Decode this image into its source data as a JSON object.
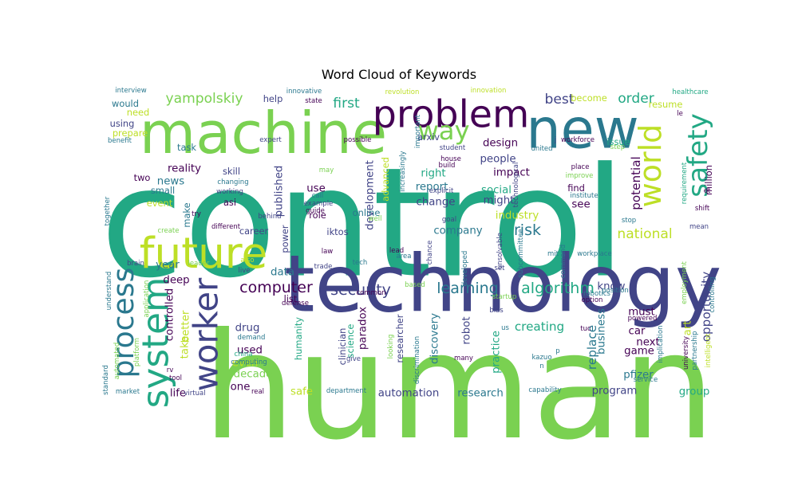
{
  "chart_data": {
    "type": "wordcloud",
    "title": "Word Cloud of Keywords",
    "words": [
      {
        "text": "control",
        "size": 1.0,
        "color": "#22a884"
      },
      {
        "text": "human",
        "size": 0.97,
        "color": "#7ad151"
      },
      {
        "text": "technology",
        "size": 0.52,
        "color": "#414487"
      },
      {
        "text": "machine",
        "size": 0.38,
        "color": "#7ad151"
      },
      {
        "text": "new",
        "size": 0.36,
        "color": "#2a788e"
      },
      {
        "text": "future",
        "size": 0.28,
        "color": "#bddf26"
      },
      {
        "text": "problem",
        "size": 0.25,
        "color": "#440154"
      },
      {
        "text": "system",
        "size": 0.24,
        "color": "#22a884"
      },
      {
        "text": "worker",
        "size": 0.22,
        "color": "#414487"
      },
      {
        "text": "world",
        "size": 0.2,
        "color": "#bddf26"
      },
      {
        "text": "process",
        "size": 0.19,
        "color": "#2a788e"
      },
      {
        "text": "safety",
        "size": 0.18,
        "color": "#22a884"
      },
      {
        "text": "way",
        "size": 0.17,
        "color": "#7ad151"
      },
      {
        "text": "security",
        "size": 0.1,
        "color": "#414487"
      },
      {
        "text": "learning",
        "size": 0.1,
        "color": "#2a788e"
      },
      {
        "text": "algorithm",
        "size": 0.1,
        "color": "#22a884"
      },
      {
        "text": "computer",
        "size": 0.1,
        "color": "#440154"
      },
      {
        "text": "risk",
        "size": 0.1,
        "color": "#2a788e"
      },
      {
        "text": "national",
        "size": 0.09,
        "color": "#bddf26"
      },
      {
        "text": "yampolskiy",
        "size": 0.09,
        "color": "#7ad151"
      },
      {
        "text": "first",
        "size": 0.09,
        "color": "#22a884"
      },
      {
        "text": "best",
        "size": 0.09,
        "color": "#414487"
      },
      {
        "text": "order",
        "size": 0.09,
        "color": "#22a884"
      },
      {
        "text": "potential",
        "size": 0.08,
        "color": "#440154"
      },
      {
        "text": "opportunity",
        "size": 0.08,
        "color": "#414487"
      },
      {
        "text": "replace",
        "size": 0.08,
        "color": "#2a788e"
      },
      {
        "text": "creating",
        "size": 0.08,
        "color": "#22a884"
      },
      {
        "text": "research",
        "size": 0.07,
        "color": "#2a788e"
      },
      {
        "text": "automation",
        "size": 0.07,
        "color": "#414487"
      },
      {
        "text": "published",
        "size": 0.07,
        "color": "#414487"
      },
      {
        "text": "development",
        "size": 0.07,
        "color": "#414487"
      },
      {
        "text": "reality",
        "size": 0.07,
        "color": "#440154"
      },
      {
        "text": "news",
        "size": 0.07,
        "color": "#2a788e"
      },
      {
        "text": "right",
        "size": 0.07,
        "color": "#22a884"
      },
      {
        "text": "social",
        "size": 0.07,
        "color": "#22a884"
      },
      {
        "text": "impact",
        "size": 0.07,
        "color": "#440154"
      },
      {
        "text": "might",
        "size": 0.07,
        "color": "#414487"
      },
      {
        "text": "industry",
        "size": 0.07,
        "color": "#bddf26"
      },
      {
        "text": "use",
        "size": 0.07,
        "color": "#440154"
      },
      {
        "text": "see",
        "size": 0.07,
        "color": "#440154"
      },
      {
        "text": "design",
        "size": 0.07,
        "color": "#440154"
      },
      {
        "text": "people",
        "size": 0.07,
        "color": "#414487"
      },
      {
        "text": "change",
        "size": 0.07,
        "color": "#414487"
      },
      {
        "text": "report",
        "size": 0.07,
        "color": "#2a788e"
      },
      {
        "text": "company",
        "size": 0.07,
        "color": "#2a788e"
      },
      {
        "text": "data",
        "size": 0.07,
        "color": "#2a788e"
      },
      {
        "text": "year",
        "size": 0.07,
        "color": "#2a788e"
      },
      {
        "text": "drug",
        "size": 0.07,
        "color": "#414487"
      },
      {
        "text": "robot",
        "size": 0.07,
        "color": "#414487"
      },
      {
        "text": "next",
        "size": 0.07,
        "color": "#440154"
      },
      {
        "text": "car",
        "size": 0.07,
        "color": "#440154"
      },
      {
        "text": "must",
        "size": 0.07,
        "color": "#440154"
      },
      {
        "text": "game",
        "size": 0.07,
        "color": "#440154"
      },
      {
        "text": "pfizer",
        "size": 0.07,
        "color": "#2a788e"
      },
      {
        "text": "program",
        "size": 0.07,
        "color": "#414487"
      },
      {
        "text": "group",
        "size": 0.07,
        "color": "#22a884"
      },
      {
        "text": "life",
        "size": 0.07,
        "color": "#440154"
      },
      {
        "text": "safe",
        "size": 0.07,
        "color": "#bddf26"
      },
      {
        "text": "one",
        "size": 0.07,
        "color": "#440154"
      },
      {
        "text": "decade",
        "size": 0.07,
        "color": "#7ad151"
      },
      {
        "text": "even",
        "size": 0.07,
        "color": "#bddf26"
      },
      {
        "text": "used",
        "size": 0.07,
        "color": "#440154"
      },
      {
        "text": "paradox",
        "size": 0.07,
        "color": "#440154"
      },
      {
        "text": "practice",
        "size": 0.07,
        "color": "#22a884"
      },
      {
        "text": "discovery",
        "size": 0.07,
        "color": "#2a788e"
      },
      {
        "text": "business",
        "size": 0.07,
        "color": "#2a788e"
      },
      {
        "text": "art",
        "size": 0.07,
        "color": "#bddf26"
      },
      {
        "text": "know",
        "size": 0.07,
        "color": "#414487"
      },
      {
        "text": "deep",
        "size": 0.07,
        "color": "#440154"
      },
      {
        "text": "better",
        "size": 0.07,
        "color": "#bddf26"
      },
      {
        "text": "take",
        "size": 0.07,
        "color": "#bddf26"
      },
      {
        "text": "controlled",
        "size": 0.07,
        "color": "#440154"
      },
      {
        "text": "list",
        "size": 0.06,
        "color": "#440154"
      },
      {
        "text": "role",
        "size": 0.06,
        "color": "#440154"
      },
      {
        "text": "online",
        "size": 0.06,
        "color": "#2a788e"
      },
      {
        "text": "iktos",
        "size": 0.06,
        "color": "#414487"
      },
      {
        "text": "career",
        "size": 0.06,
        "color": "#414487"
      },
      {
        "text": "power",
        "size": 0.06,
        "color": "#414487"
      },
      {
        "text": "humanity",
        "size": 0.06,
        "color": "#22a884"
      },
      {
        "text": "science",
        "size": 0.06,
        "color": "#22a884"
      },
      {
        "text": "clinician",
        "size": 0.06,
        "color": "#414487"
      },
      {
        "text": "researcher",
        "size": 0.06,
        "color": "#414487"
      },
      {
        "text": "advanced",
        "size": 0.06,
        "color": "#bddf26"
      },
      {
        "text": "arxiv",
        "size": 0.06,
        "color": "#414487"
      },
      {
        "text": "issue",
        "size": 0.06,
        "color": "#22a884"
      },
      {
        "text": "become",
        "size": 0.06,
        "color": "#bddf26"
      },
      {
        "text": "resume",
        "size": 0.06,
        "color": "#bddf26"
      },
      {
        "text": "find",
        "size": 0.06,
        "color": "#440154"
      },
      {
        "text": "million",
        "size": 0.06,
        "color": "#440154"
      },
      {
        "text": "would",
        "size": 0.06,
        "color": "#2a788e"
      },
      {
        "text": "need",
        "size": 0.06,
        "color": "#bddf26"
      },
      {
        "text": "using",
        "size": 0.06,
        "color": "#414487"
      },
      {
        "text": "prepare",
        "size": 0.06,
        "color": "#bddf26"
      },
      {
        "text": "task",
        "size": 0.06,
        "color": "#2a788e"
      },
      {
        "text": "help",
        "size": 0.06,
        "color": "#414487"
      },
      {
        "text": "skill",
        "size": 0.06,
        "color": "#414487"
      },
      {
        "text": "asi",
        "size": 0.06,
        "color": "#440154"
      },
      {
        "text": "two",
        "size": 0.06,
        "color": "#440154"
      },
      {
        "text": "small",
        "size": 0.06,
        "color": "#2a788e"
      },
      {
        "text": "event",
        "size": 0.06,
        "color": "#bddf26"
      },
      {
        "text": "make",
        "size": 0.06,
        "color": "#2a788e"
      },
      {
        "text": "interview",
        "size": 0.04,
        "color": "#2a788e"
      },
      {
        "text": "benefit",
        "size": 0.03,
        "color": "#2a788e"
      },
      {
        "text": "together",
        "size": 0.03,
        "color": "#2a788e"
      },
      {
        "text": "create",
        "size": 0.03,
        "color": "#7ad151"
      },
      {
        "text": "brain",
        "size": 0.03,
        "color": "#414487"
      },
      {
        "text": "understand",
        "size": 0.03,
        "color": "#2a788e"
      },
      {
        "text": "application",
        "size": 0.03,
        "color": "#7ad151"
      },
      {
        "text": "automated",
        "size": 0.03,
        "color": "#7ad151"
      },
      {
        "text": "standard",
        "size": 0.03,
        "color": "#2a788e"
      },
      {
        "text": "platform",
        "size": 0.03,
        "color": "#7ad151"
      },
      {
        "text": "market",
        "size": 0.03,
        "color": "#2a788e"
      },
      {
        "text": "virtual",
        "size": 0.03,
        "color": "#414487"
      },
      {
        "text": "real",
        "size": 0.03,
        "color": "#440154"
      },
      {
        "text": "tool",
        "size": 0.03,
        "color": "#440154"
      },
      {
        "text": "rv",
        "size": 0.03,
        "color": "#440154"
      },
      {
        "text": "china",
        "size": 0.03,
        "color": "#22a884"
      },
      {
        "text": "computing",
        "size": 0.03,
        "color": "#2a788e"
      },
      {
        "text": "demand",
        "size": 0.03,
        "color": "#2a788e"
      },
      {
        "text": "live",
        "size": 0.03,
        "color": "#414487"
      },
      {
        "text": "also",
        "size": 0.03,
        "color": "#bddf26"
      },
      {
        "text": "leader",
        "size": 0.03,
        "color": "#7ad151"
      },
      {
        "text": "try",
        "size": 0.03,
        "color": "#440154"
      },
      {
        "text": "different",
        "size": 0.03,
        "color": "#440154"
      },
      {
        "text": "behind",
        "size": 0.03,
        "color": "#414487"
      },
      {
        "text": "working",
        "size": 0.03,
        "color": "#414487"
      },
      {
        "text": "changing",
        "size": 0.03,
        "color": "#2a788e"
      },
      {
        "text": "may",
        "size": 0.03,
        "color": "#7ad151"
      },
      {
        "text": "call",
        "size": 0.03,
        "color": "#2a788e"
      },
      {
        "text": "example",
        "size": 0.03,
        "color": "#414487"
      },
      {
        "text": "well",
        "size": 0.03,
        "color": "#7ad151"
      },
      {
        "text": "goal",
        "size": 0.03,
        "color": "#414487"
      },
      {
        "text": "house",
        "size": 0.03,
        "color": "#440154"
      },
      {
        "text": "explicit",
        "size": 0.03,
        "color": "#414487"
      },
      {
        "text": "increasingly",
        "size": 0.03,
        "color": "#2a788e"
      },
      {
        "text": "possible",
        "size": 0.03,
        "color": "#440154"
      },
      {
        "text": "expert",
        "size": 0.03,
        "color": "#414487"
      },
      {
        "text": "innovative",
        "size": 0.03,
        "color": "#2a788e"
      },
      {
        "text": "state",
        "size": 0.03,
        "color": "#440154"
      },
      {
        "text": "revolution",
        "size": 0.03,
        "color": "#bddf26"
      },
      {
        "text": "important",
        "size": 0.03,
        "color": "#2a788e"
      },
      {
        "text": "student",
        "size": 0.03,
        "color": "#414487"
      },
      {
        "text": "innovation",
        "size": 0.03,
        "color": "#bddf26"
      },
      {
        "text": "build",
        "size": 0.03,
        "color": "#440154"
      },
      {
        "text": "guide",
        "size": 0.03,
        "color": "#440154"
      },
      {
        "text": "law",
        "size": 0.03,
        "color": "#440154"
      },
      {
        "text": "united",
        "size": 0.03,
        "color": "#2a788e"
      },
      {
        "text": "j",
        "size": 0.03,
        "color": "#414487"
      },
      {
        "text": "workforce",
        "size": 0.03,
        "color": "#440154"
      },
      {
        "text": "healthcare",
        "size": 0.03,
        "color": "#22a884"
      },
      {
        "text": "le",
        "size": 0.03,
        "color": "#440154"
      },
      {
        "text": "step",
        "size": 0.03,
        "color": "#7ad151"
      },
      {
        "text": "place",
        "size": 0.03,
        "color": "#440154"
      },
      {
        "text": "improve",
        "size": 0.03,
        "color": "#7ad151"
      },
      {
        "text": "institute",
        "size": 0.03,
        "color": "#2a788e"
      },
      {
        "text": "requirement",
        "size": 0.03,
        "color": "#22a884"
      },
      {
        "text": "et",
        "size": 0.03,
        "color": "#440154"
      },
      {
        "text": "shift",
        "size": 0.03,
        "color": "#440154"
      },
      {
        "text": "stop",
        "size": 0.03,
        "color": "#2a788e"
      },
      {
        "text": "technological",
        "size": 0.03,
        "color": "#414487"
      },
      {
        "text": "mean",
        "size": 0.03,
        "color": "#414487"
      },
      {
        "text": "workplace",
        "size": 0.03,
        "color": "#2a788e"
      },
      {
        "text": "command",
        "size": 0.03,
        "color": "#2a788e"
      },
      {
        "text": "mit",
        "size": 0.03,
        "color": "#2a788e"
      },
      {
        "text": "subcommittee",
        "size": 0.03,
        "color": "#2a788e"
      },
      {
        "text": "unsolvable",
        "size": 0.03,
        "color": "#414487"
      },
      {
        "text": "chance",
        "size": 0.03,
        "color": "#414487"
      },
      {
        "text": "lead",
        "size": 0.03,
        "color": "#440154"
      },
      {
        "text": "area",
        "size": 0.03,
        "color": "#2a788e"
      },
      {
        "text": "trade",
        "size": 0.03,
        "color": "#414487"
      },
      {
        "text": "tech",
        "size": 0.03,
        "color": "#2a788e"
      },
      {
        "text": "developed",
        "size": 0.03,
        "color": "#2a788e"
      },
      {
        "text": "set",
        "size": 0.03,
        "color": "#414487"
      },
      {
        "text": "based",
        "size": 0.03,
        "color": "#7ad151"
      },
      {
        "text": "common",
        "size": 0.03,
        "color": "#440154"
      },
      {
        "text": "defense",
        "size": 0.03,
        "color": "#440154"
      },
      {
        "text": "startup",
        "size": 0.03,
        "color": "#7ad151"
      },
      {
        "text": "bias",
        "size": 0.03,
        "color": "#414487"
      },
      {
        "text": "us",
        "size": 0.03,
        "color": "#2a788e"
      },
      {
        "text": "discrimination",
        "size": 0.03,
        "color": "#2a788e"
      },
      {
        "text": "looking",
        "size": 0.03,
        "color": "#7ad151"
      },
      {
        "text": "give",
        "size": 0.03,
        "color": "#414487"
      },
      {
        "text": "many",
        "size": 0.03,
        "color": "#440154"
      },
      {
        "text": "kazuo",
        "size": 0.03,
        "color": "#2a788e"
      },
      {
        "text": "p",
        "size": 0.03,
        "color": "#2a788e"
      },
      {
        "text": "n",
        "size": 0.03,
        "color": "#2a788e"
      },
      {
        "text": "department",
        "size": 0.03,
        "color": "#2a788e"
      },
      {
        "text": "capability",
        "size": 0.03,
        "color": "#2a788e"
      },
      {
        "text": "tuc",
        "size": 0.03,
        "color": "#440154"
      },
      {
        "text": "powered",
        "size": 0.03,
        "color": "#440154"
      },
      {
        "text": "implication",
        "size": 0.03,
        "color": "#2a788e"
      },
      {
        "text": "service",
        "size": 0.03,
        "color": "#2a788e"
      },
      {
        "text": "partnership",
        "size": 0.03,
        "color": "#2a788e"
      },
      {
        "text": "university",
        "size": 0.03,
        "color": "#440154"
      },
      {
        "text": "intelligent",
        "size": 0.03,
        "color": "#bddf26"
      },
      {
        "text": "controlling",
        "size": 0.03,
        "color": "#2a788e"
      },
      {
        "text": "employment",
        "size": 0.03,
        "color": "#7ad151"
      },
      {
        "text": "robotics",
        "size": 0.03,
        "color": "#2a788e"
      },
      {
        "text": "option",
        "size": 0.03,
        "color": "#440154"
      },
      {
        "text": "position",
        "size": 0.03,
        "color": "#2a788e"
      }
    ]
  }
}
